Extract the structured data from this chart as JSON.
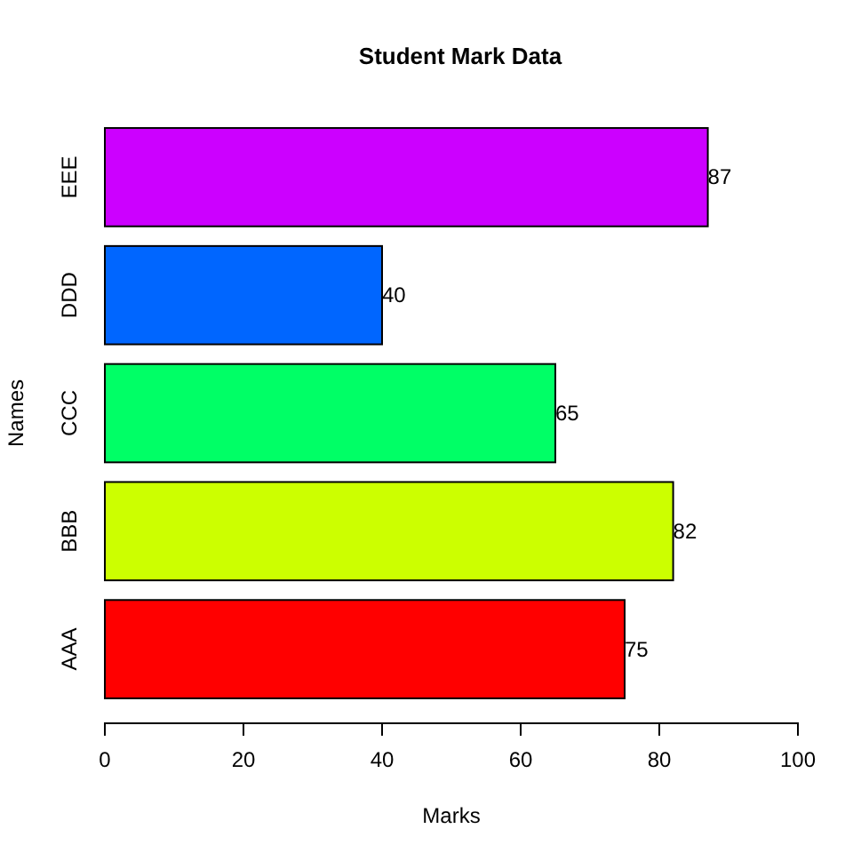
{
  "chart_data": {
    "type": "bar",
    "orientation": "horizontal",
    "title": "Student Mark Data",
    "xlabel": "Marks",
    "ylabel": "Names",
    "categories": [
      "EEE",
      "DDD",
      "CCC",
      "BBB",
      "AAA"
    ],
    "values": [
      87,
      40,
      65,
      82,
      75
    ],
    "colors": [
      "#cc00ff",
      "#0066ff",
      "#00ff66",
      "#ccff00",
      "#ff0000"
    ],
    "xlim": [
      0,
      100
    ],
    "xticks": [
      0,
      20,
      40,
      60,
      80,
      100
    ],
    "data_labels": true,
    "grid": false,
    "legend": false
  }
}
